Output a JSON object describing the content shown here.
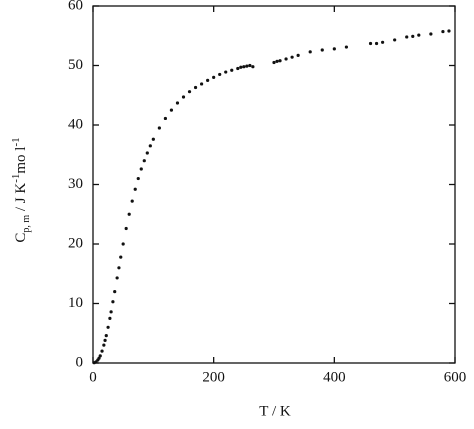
{
  "chart_data": {
    "type": "scatter",
    "x_label": "T / K",
    "y_label": [
      "C",
      "p, m",
      " / J K",
      "-1",
      "mo l",
      "-1"
    ],
    "x": [
      2,
      5,
      8,
      10,
      12,
      15,
      18,
      20,
      22,
      25,
      28,
      30,
      33,
      36,
      40,
      43,
      46,
      50,
      55,
      60,
      65,
      70,
      75,
      80,
      85,
      90,
      95,
      100,
      110,
      120,
      130,
      140,
      150,
      160,
      170,
      180,
      190,
      200,
      210,
      220,
      230,
      240,
      245,
      250,
      255,
      260,
      265,
      300,
      305,
      310,
      320,
      330,
      340,
      360,
      380,
      400,
      420,
      460,
      470,
      480,
      500,
      520,
      530,
      540,
      560,
      580,
      590
    ],
    "values": [
      0.05,
      0.2,
      0.5,
      0.8,
      1.2,
      2,
      3,
      3.8,
      4.6,
      6,
      7.5,
      8.6,
      10.3,
      12,
      14.3,
      16,
      17.8,
      20,
      22.6,
      25,
      27.2,
      29.2,
      31,
      32.6,
      34,
      35.3,
      36.5,
      37.6,
      39.5,
      41.1,
      42.5,
      43.7,
      44.7,
      45.6,
      46.3,
      46.9,
      47.5,
      48,
      48.5,
      48.9,
      49.2,
      49.5,
      49.7,
      49.8,
      49.9,
      50,
      49.8,
      50.5,
      50.7,
      50.8,
      51.1,
      51.4,
      51.7,
      52.3,
      52.6,
      52.8,
      53.1,
      53.7,
      53.7,
      53.9,
      54.3,
      54.8,
      54.9,
      55.1,
      55.3,
      55.7,
      55.8
    ],
    "color": "#111111",
    "xlim": [
      0,
      600
    ],
    "ylim": [
      0,
      60
    ],
    "xticks": [
      0,
      200,
      400,
      600
    ],
    "yticks": [
      0,
      10,
      20,
      30,
      40,
      50,
      60
    ]
  }
}
